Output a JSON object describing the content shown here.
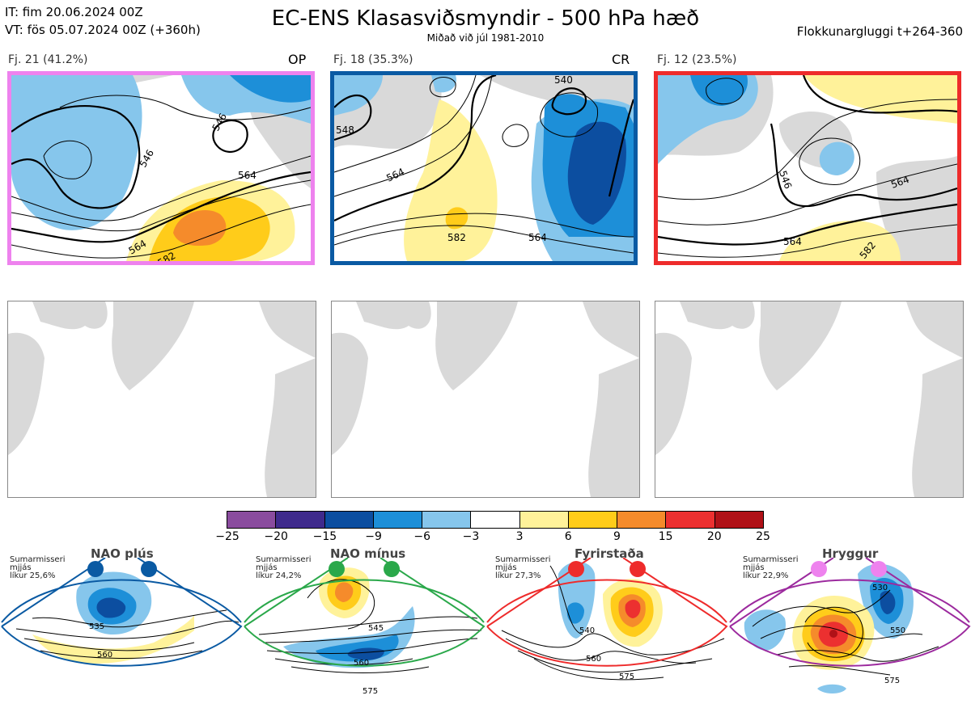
{
  "header": {
    "it_line": "IT: fim 20.06.2024 00Z",
    "vt_line": "VT: fös 05.07.2024 00Z  (+360h)",
    "title": "EC-ENS Klasasviðsmyndir - 500 hPa hæð",
    "subtitle": "Miðað við júl 1981-2010",
    "window": "Flokkunargluggi t+264-360"
  },
  "panels": [
    {
      "label": "Fj. 21 (41.2%)",
      "tag": "OP",
      "border_color": "#ee82ee",
      "contours": [
        "546",
        "546",
        "564",
        "564",
        "582"
      ]
    },
    {
      "label": "Fj. 18 (35.3%)",
      "tag": "CR",
      "border_color": "#0a5aa3",
      "contours": [
        "548",
        "540",
        "564",
        "564",
        "582"
      ]
    },
    {
      "label": "Fj. 12 (23.5%)",
      "tag": "",
      "border_color": "#ee2b2b",
      "contours": [
        "546",
        "564",
        "564",
        "582"
      ]
    }
  ],
  "colorbar": {
    "colors": [
      "#8a4c9e",
      "#3f2a8c",
      "#0c4ea0",
      "#1d8fd8",
      "#86c6ec",
      "#ffffff",
      "#fff29a",
      "#ffcc1a",
      "#f58b2b",
      "#ec3030",
      "#b01117"
    ],
    "ticks": [
      "−25",
      "−20",
      "−15",
      "−9",
      "−6",
      "−3",
      "3",
      "6",
      "9",
      "15",
      "20",
      "25"
    ]
  },
  "regimes": [
    {
      "name": "NAO plús",
      "season": "Sumarmisseri",
      "note": "mjjás",
      "likelihood": "líkur 25,6%",
      "color": "#0a5aa3",
      "contours": [
        "535",
        "560"
      ]
    },
    {
      "name": "NAO mínus",
      "season": "Sumarmisseri",
      "note": "mjjás",
      "likelihood": "líkur 24,2%",
      "color": "#2aa84a",
      "contours": [
        "545",
        "560",
        "575"
      ]
    },
    {
      "name": "Fyrirstaða",
      "season": "Sumarmisseri",
      "note": "mjjás",
      "likelihood": "líkur 27,3%",
      "color": "#ee2b2b",
      "contours": [
        "540",
        "560",
        "575"
      ]
    },
    {
      "name": "Hryggur",
      "season": "Sumarmisseri",
      "note": "mjjás",
      "likelihood": "líkur 22,9%",
      "color": "#9c2a9e",
      "contours": [
        "530",
        "550",
        "575"
      ]
    }
  ]
}
